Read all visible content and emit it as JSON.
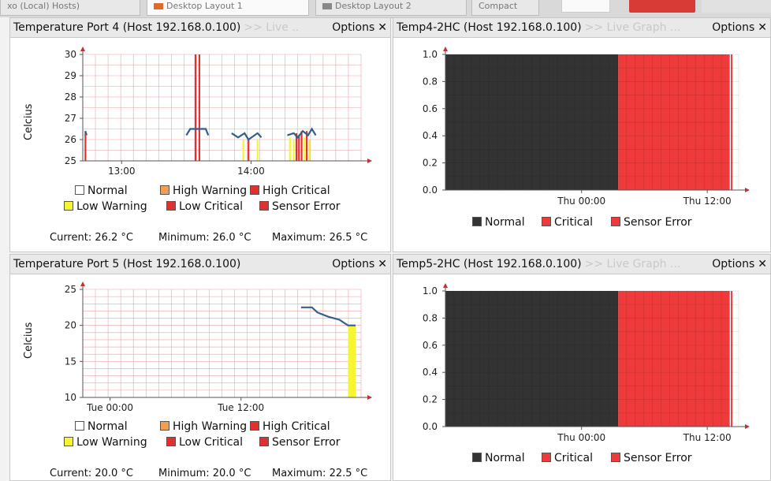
{
  "tabs": [
    {
      "label": "xo (Local) Hosts)",
      "color": ""
    },
    {
      "label": "Desktop Layout 1",
      "color": "#e06a2c"
    },
    {
      "label": "Desktop Layout 2",
      "color": "#888888"
    },
    {
      "label": "Compact",
      "color": ""
    }
  ],
  "colors": {
    "normal": "#ffffff",
    "high_warning": "#f0a050",
    "high_critical": "#e03030",
    "low_warning": "#f5f533",
    "low_critical": "#e03030",
    "sensor_error": "#e03030",
    "status_normal": "#333333",
    "status_critical": "#ee3a3a",
    "line": "#335f8c",
    "grid": "#e9a3a3"
  },
  "panels": {
    "temp4": {
      "title": "Temperature Port 4 (Host 192.168.0.100)",
      "subtitle": ">> Live ..",
      "options": "Options",
      "ylabel": "Celcius",
      "current": "Current: 26.2 °C",
      "minimum": "Minimum: 26.0 °C",
      "maximum": "Maximum: 26.5 °C"
    },
    "temp4_2hc": {
      "title": "Temp4-2HC (Host 192.168.0.100)",
      "subtitle": ">> Live Graph ...",
      "options": "Options"
    },
    "temp5": {
      "title": "Temperature Port 5 (Host 192.168.0.100)",
      "subtitle": "",
      "options": "Options",
      "ylabel": "Celcius",
      "current": "Current: 20.0 °C",
      "minimum": "Minimum: 20.0 °C",
      "maximum": "Maximum: 22.5 °C"
    },
    "temp5_2hc": {
      "title": "Temp5-2HC (Host 192.168.0.100)",
      "subtitle": ">> Live Graph ...",
      "options": "Options"
    }
  },
  "temp_legend": {
    "normal": "Normal",
    "high_warning": "High Warning",
    "high_critical": "High Critical",
    "low_warning": "Low Warning",
    "low_critical": "Low Critical",
    "sensor_error": "Sensor Error"
  },
  "status_legend": {
    "normal": "Normal",
    "critical": "Critical",
    "sensor_error": "Sensor Error"
  },
  "chart_data": [
    {
      "id": "temp4",
      "type": "line",
      "ylabel": "Celcius",
      "yticks": [
        25,
        26,
        27,
        28,
        29,
        30
      ],
      "ylim": [
        25,
        30
      ],
      "xticks": [
        "13:00",
        "14:00"
      ],
      "xlim_hours": [
        12.7,
        14.85
      ],
      "tick_hours": [
        13.0,
        14.0
      ],
      "series": [
        {
          "x": [
            12.72,
            12.73
          ],
          "y": [
            26.4,
            26.2
          ]
        },
        {
          "x": [
            13.5,
            13.53,
            13.6,
            13.65,
            13.67
          ],
          "y": [
            26.2,
            26.5,
            26.5,
            26.5,
            26.2
          ]
        },
        {
          "x": [
            13.85,
            13.9,
            13.95,
            13.98,
            14.05,
            14.08
          ],
          "y": [
            26.3,
            26.1,
            26.3,
            26.0,
            26.3,
            26.1
          ]
        },
        {
          "x": [
            14.28,
            14.33,
            14.36,
            14.4,
            14.44,
            14.47,
            14.5
          ],
          "y": [
            26.2,
            26.3,
            26.1,
            26.4,
            26.2,
            26.5,
            26.2
          ]
        }
      ],
      "events": [
        {
          "x": 12.72,
          "type": "sensor_error",
          "top": 26.4
        },
        {
          "x": 13.57,
          "type": "sensor_error",
          "top": 30
        },
        {
          "x": 13.6,
          "type": "sensor_error",
          "top": 30
        },
        {
          "x": 13.94,
          "type": "low_warning",
          "top": 26.0
        },
        {
          "x": 13.98,
          "type": "sensor_error",
          "top": 26.0
        },
        {
          "x": 14.05,
          "type": "low_warning",
          "top": 26.0
        },
        {
          "x": 14.3,
          "type": "low_warning",
          "top": 26.1
        },
        {
          "x": 14.33,
          "type": "low_warning",
          "top": 26.0
        },
        {
          "x": 14.35,
          "type": "sensor_error",
          "top": 26.3
        },
        {
          "x": 14.37,
          "type": "high_critical",
          "top": 26.2
        },
        {
          "x": 14.39,
          "type": "sensor_error",
          "top": 26.4
        },
        {
          "x": 14.41,
          "type": "low_warning",
          "top": 26.1
        },
        {
          "x": 14.43,
          "type": "sensor_error",
          "top": 26.4
        },
        {
          "x": 14.45,
          "type": "low_warning",
          "top": 26.0
        }
      ]
    },
    {
      "id": "temp4_2hc",
      "type": "area",
      "yticks": [
        "0.0",
        "0.2",
        "0.4",
        "0.6",
        "0.8",
        "1.0"
      ],
      "ylim": [
        0,
        1
      ],
      "xticks": [
        "Thu 00:00",
        "Thu 12:00"
      ],
      "xlim_hours": [
        -13,
        15
      ],
      "tick_hours": [
        0,
        12
      ],
      "bands": [
        {
          "from": -13,
          "to": 3.5,
          "status": "normal",
          "value": 1
        },
        {
          "from": 3.5,
          "to": 14.4,
          "status": "critical",
          "value": 1
        }
      ]
    },
    {
      "id": "temp5",
      "type": "line",
      "ylabel": "Celcius",
      "yticks": [
        10,
        15,
        20,
        25
      ],
      "ylim": [
        10,
        25
      ],
      "xticks": [
        "Tue 00:00",
        "Tue 12:00"
      ],
      "xlim_hours": [
        -2.5,
        23
      ],
      "tick_hours": [
        0,
        12
      ],
      "series": [
        {
          "x": [
            17.5,
            18.5,
            19.0,
            19.5,
            20.0,
            20.5,
            21.0,
            21.8,
            22.5
          ],
          "y": [
            22.5,
            22.5,
            21.8,
            21.5,
            21.2,
            21.0,
            20.8,
            20.0,
            20.0
          ]
        }
      ],
      "events": [
        {
          "from": 21.8,
          "to": 22.5,
          "type": "low_warning",
          "top": 20.0
        }
      ]
    },
    {
      "id": "temp5_2hc",
      "type": "area",
      "yticks": [
        "0.0",
        "0.2",
        "0.4",
        "0.6",
        "0.8",
        "1.0"
      ],
      "ylim": [
        0,
        1
      ],
      "xticks": [
        "Thu 00:00",
        "Thu 12:00"
      ],
      "xlim_hours": [
        -13,
        15
      ],
      "tick_hours": [
        0,
        12
      ],
      "bands": [
        {
          "from": -13,
          "to": 3.5,
          "status": "normal",
          "value": 1
        },
        {
          "from": 3.5,
          "to": 14.4,
          "status": "critical",
          "value": 1
        }
      ]
    }
  ]
}
